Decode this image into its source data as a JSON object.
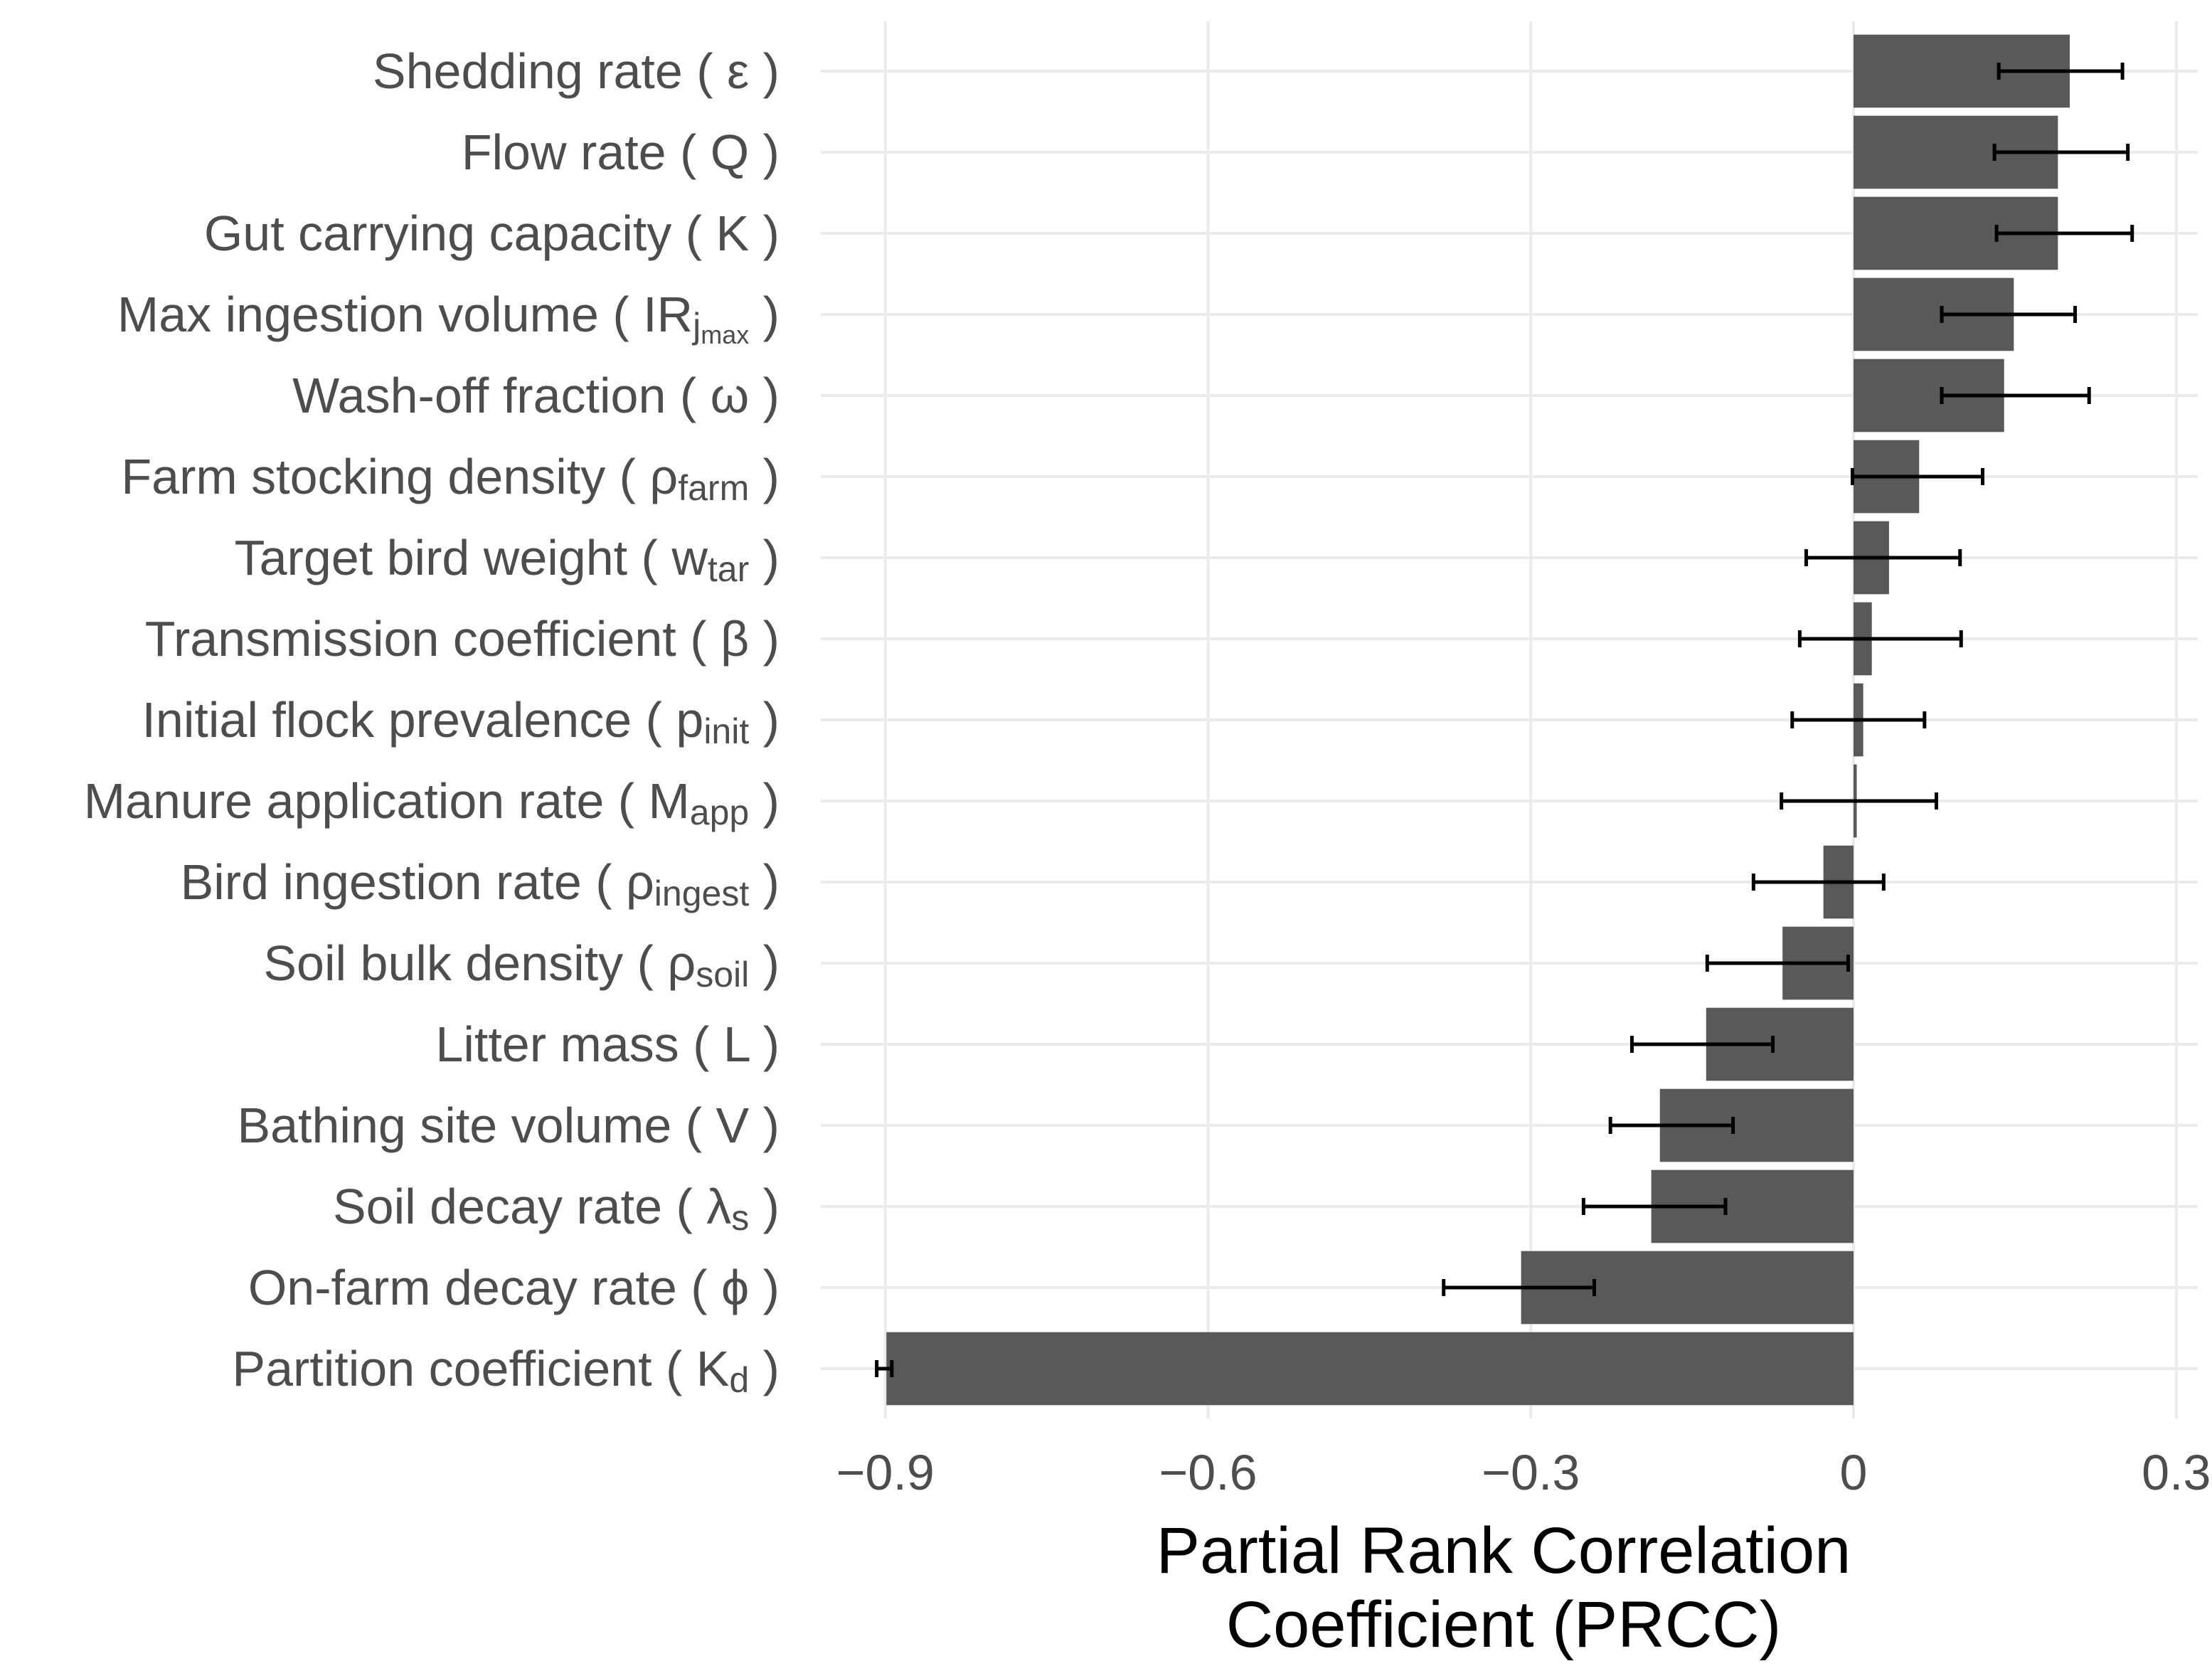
{
  "chart_data": {
    "type": "bar",
    "orientation": "horizontal",
    "xlabel": [
      "Partial Rank Correlation",
      "Coefficient (PRCC)"
    ],
    "categories": [
      {
        "text": "Shedding rate ( ε )"
      },
      {
        "text": "Flow rate ( Q )"
      },
      {
        "text": "Gut carrying capacity ( K )"
      },
      {
        "text": "Max ingestion volume ( IR",
        "sub": "j",
        "subsub": "max",
        "tail": " )"
      },
      {
        "text": "Wash-off fraction ( ω )"
      },
      {
        "text": "Farm stocking density ( ρ",
        "sub": "farm",
        "tail": " )"
      },
      {
        "text": "Target bird weight ( w",
        "sub": "tar",
        "tail": " )"
      },
      {
        "text": "Transmission coefficient ( β )"
      },
      {
        "text": "Initial flock prevalence ( p",
        "sub": "init",
        "tail": " )"
      },
      {
        "text": "Manure application rate ( M",
        "sub": "app",
        "tail": " )"
      },
      {
        "text": "Bird ingestion rate ( ρ",
        "sub": "ingest",
        "tail": " )"
      },
      {
        "text": "Soil bulk density ( ρ",
        "sub": "soil",
        "tail": " )"
      },
      {
        "text": "Litter mass ( L )"
      },
      {
        "text": "Bathing site volume ( V )"
      },
      {
        "text": "Soil decay rate ( λ",
        "sub": "s",
        "tail": " )"
      },
      {
        "text": "On-farm decay rate ( ϕ )"
      },
      {
        "text": "Partition coefficient ( K",
        "sub": "d",
        "tail": " )"
      }
    ],
    "values": [
      0.201,
      0.19,
      0.19,
      0.149,
      0.14,
      0.061,
      0.033,
      0.017,
      0.009,
      0.003,
      -0.028,
      -0.066,
      -0.137,
      -0.18,
      -0.188,
      -0.309,
      -0.899
    ],
    "error_low": [
      0.135,
      0.131,
      0.133,
      0.082,
      0.082,
      -0.001,
      -0.044,
      -0.05,
      -0.057,
      -0.067,
      -0.093,
      -0.136,
      -0.206,
      -0.226,
      -0.251,
      -0.381,
      -0.908
    ],
    "error_high": [
      0.25,
      0.255,
      0.259,
      0.206,
      0.219,
      0.12,
      0.099,
      0.1,
      0.066,
      0.077,
      0.028,
      -0.005,
      -0.075,
      -0.112,
      -0.119,
      -0.241,
      -0.894
    ],
    "color": "#595959",
    "error_color": "#000000",
    "xlim": [
      -0.96,
      0.32
    ],
    "xticks": [
      {
        "value": -0.9,
        "label": "−0.9"
      },
      {
        "value": -0.6,
        "label": "−0.6"
      },
      {
        "value": -0.3,
        "label": "−0.3"
      },
      0,
      0.3
    ],
    "grid": true
  }
}
